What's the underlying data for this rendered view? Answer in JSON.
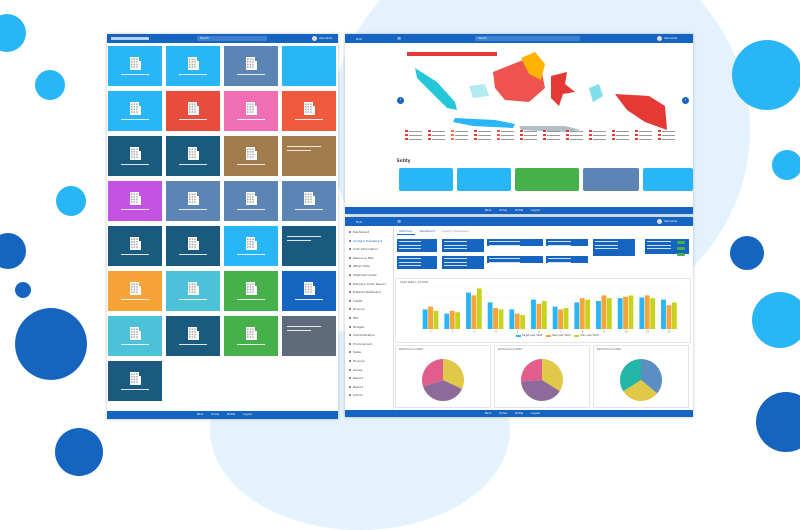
{
  "colors": {
    "primary": "#1565c0",
    "accent_light": "#29b6f6",
    "map_highlight": "#e53935",
    "background_blob": "#e3f2fd"
  },
  "left_screen": {
    "search_placeholder": "Search",
    "user_label": "Username",
    "tiles": [
      {
        "color": "#29b6f6",
        "icon": "building-icon"
      },
      {
        "color": "#29b6f6",
        "icon": "building-icon"
      },
      {
        "color": "#5c85b6",
        "icon": "building-icon"
      },
      {
        "color": "#29b6f6",
        "icon": "none"
      },
      {
        "color": "#29b6f6",
        "icon": "building-icon"
      },
      {
        "color": "#e74c3c",
        "icon": "building-icon"
      },
      {
        "color": "#f06eb4",
        "icon": "building-icon"
      },
      {
        "color": "#f05a3c",
        "icon": "building-icon"
      },
      {
        "color": "#1a5a7e",
        "icon": "building-icon"
      },
      {
        "color": "#1a5a7e",
        "icon": "building-icon"
      },
      {
        "color": "#a17b4b",
        "icon": "building-icon"
      },
      {
        "color": "#a17b4b",
        "icon": "text-only"
      },
      {
        "color": "#c353e0",
        "icon": "building-icon"
      },
      {
        "color": "#5c85b6",
        "icon": "building-icon"
      },
      {
        "color": "#5c85b6",
        "icon": "building-icon"
      },
      {
        "color": "#5c85b6",
        "icon": "building-icon"
      },
      {
        "color": "#1a5a7e",
        "icon": "building-icon"
      },
      {
        "color": "#1a5a7e",
        "icon": "building-icon"
      },
      {
        "color": "#29b6f6",
        "icon": "building-icon"
      },
      {
        "color": "#1a5a7e",
        "icon": "text-only"
      },
      {
        "color": "#f6a437",
        "icon": "building-icon"
      },
      {
        "color": "#4dc1d7",
        "icon": "building-icon"
      },
      {
        "color": "#46b04a",
        "icon": "building-icon"
      },
      {
        "color": "#1565c0",
        "icon": "building-icon"
      },
      {
        "color": "#4dc1d7",
        "icon": "building-icon"
      },
      {
        "color": "#1a5a7e",
        "icon": "building-icon"
      },
      {
        "color": "#46b04a",
        "icon": "building-icon"
      },
      {
        "color": "#5f6b7a",
        "icon": "text-only"
      },
      {
        "color": "#1a5a7e",
        "icon": "building-icon"
      }
    ],
    "footer_links": [
      "Back",
      "Home",
      "Profile",
      "Logout"
    ]
  },
  "map_screen": {
    "app_title": "Hub",
    "search_placeholder": "Search",
    "user_label": "Username",
    "section_title": "Entity",
    "footer_links": [
      "Back",
      "Home",
      "Profile",
      "Logout"
    ]
  },
  "dashboard_screen": {
    "app_title": "Hub",
    "user_label": "Username",
    "sidebar": [
      "Dashboard",
      "Analytic Dashboard",
      "Cost Information",
      "Resource Plan",
      "Other Data",
      "Shipment Order",
      "Delivery Order Report",
      "Details Dashboard",
      "Intellic",
      "Finance",
      "IMT",
      "Budget",
      "Administration",
      "Procurement",
      "Sales",
      "Finance",
      "Issues",
      "Report",
      "Report",
      "Admin"
    ],
    "tabs": [
      "Summary",
      "Dashboard",
      "Analytic Dashboard"
    ],
    "chart_title": "Chart Data 1-12 2020",
    "chart_legend": [
      "Target year 2020",
      "Real year 2020",
      "Prev year 2019"
    ],
    "pie_titles": [
      "Performance 2020",
      "Performance 2020",
      "Performance 2020"
    ],
    "footer_links": [
      "Back",
      "Home",
      "Profile",
      "Logout"
    ]
  },
  "chart_data": [
    {
      "type": "bar",
      "title": "Chart Data 1-12 2020",
      "categories": [
        "1",
        "2",
        "3",
        "4",
        "5",
        "6",
        "7",
        "8",
        "9",
        "10",
        "11",
        "12"
      ],
      "series": [
        {
          "name": "Target year 2020",
          "values": [
            28,
            22,
            52,
            38,
            28,
            42,
            32,
            38,
            40,
            44,
            45,
            42
          ]
        },
        {
          "name": "Real year 2020",
          "values": [
            32,
            26,
            48,
            30,
            22,
            36,
            28,
            44,
            48,
            46,
            48,
            34
          ]
        },
        {
          "name": "Prev year 2019",
          "values": [
            26,
            24,
            58,
            28,
            20,
            40,
            30,
            42,
            44,
            48,
            44,
            38
          ]
        }
      ],
      "ylim": [
        0,
        60
      ]
    },
    {
      "type": "pie",
      "series": [
        {
          "values": [
            32,
            38,
            30
          ]
        }
      ]
    },
    {
      "type": "pie",
      "series": [
        {
          "values": [
            34,
            40,
            26
          ]
        }
      ]
    },
    {
      "type": "pie",
      "series": [
        {
          "values": [
            36,
            30,
            34
          ]
        }
      ]
    }
  ]
}
